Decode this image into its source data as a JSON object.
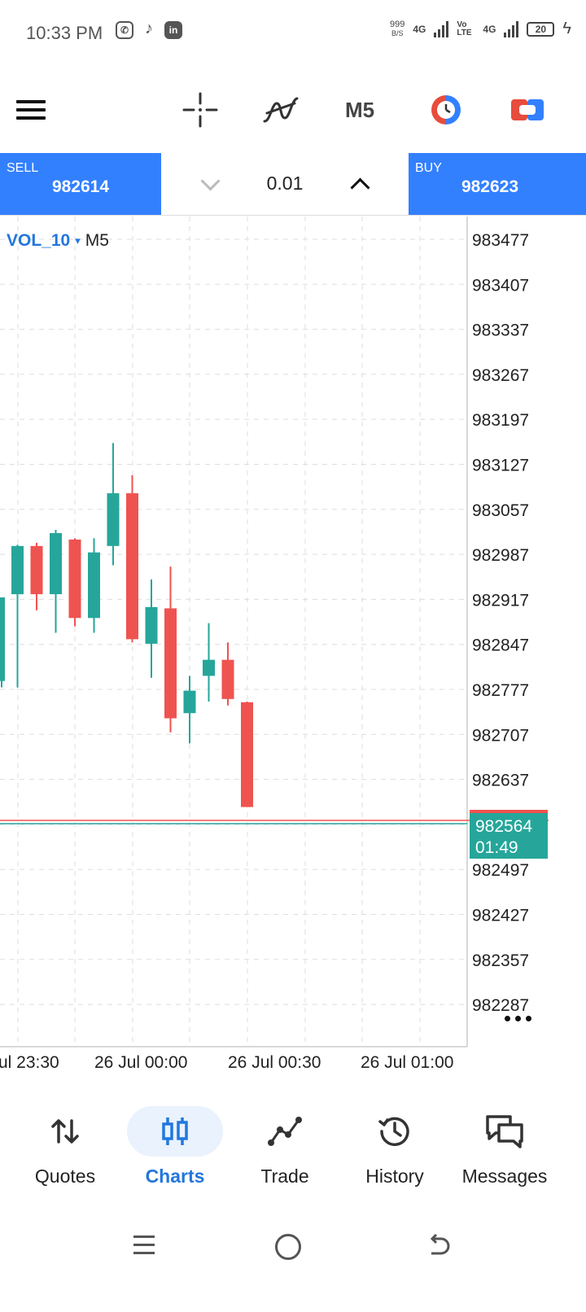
{
  "status_bar": {
    "time": "10:33 PM",
    "data_speed": "999",
    "data_speed_unit": "B/S",
    "network1": "4G",
    "volte": "Vo LTE",
    "network2": "4G",
    "battery": "20"
  },
  "toolbar": {
    "timeframe": "M5"
  },
  "trade": {
    "sell_label": "SELL",
    "sell_price": "982614",
    "lot_size": "0.01",
    "buy_label": "BUY",
    "buy_price": "982623"
  },
  "chart_header": {
    "symbol": "VOL_10",
    "caret": "▾",
    "timeframe": "M5"
  },
  "chart_data": {
    "type": "candlestick",
    "price_axis": [
      "983477",
      "983407",
      "983337",
      "983267",
      "983197",
      "983127",
      "983057",
      "982987",
      "982917",
      "982847",
      "982777",
      "982707",
      "982637",
      "982497",
      "982427",
      "982357",
      "982287"
    ],
    "time_axis": [
      "ul 23:30",
      "26 Jul 00:00",
      "26 Jul 00:30",
      "26 Jul 01:00"
    ],
    "current_price": "982564",
    "countdown": "01:49",
    "candles": [
      {
        "open": 982790,
        "high": 982920,
        "low": 982780,
        "close": 982920
      },
      {
        "open": 982925,
        "high": 983002,
        "low": 982780,
        "close": 983000
      },
      {
        "open": 983000,
        "high": 983005,
        "low": 982900,
        "close": 982925
      },
      {
        "open": 982925,
        "high": 983025,
        "low": 982865,
        "close": 983020
      },
      {
        "open": 983010,
        "high": 983012,
        "low": 982875,
        "close": 982888
      },
      {
        "open": 982888,
        "high": 983012,
        "low": 982865,
        "close": 982990
      },
      {
        "open": 983000,
        "high": 983160,
        "low": 982970,
        "close": 983082
      },
      {
        "open": 983082,
        "high": 983110,
        "low": 982850,
        "close": 982855
      },
      {
        "open": 982848,
        "high": 982948,
        "low": 982795,
        "close": 982905
      },
      {
        "open": 982903,
        "high": 982968,
        "low": 982710,
        "close": 982732
      },
      {
        "open": 982740,
        "high": 982798,
        "low": 982693,
        "close": 982775
      },
      {
        "open": 982798,
        "high": 982880,
        "low": 982758,
        "close": 982823
      },
      {
        "open": 982823,
        "high": 982850,
        "low": 982752,
        "close": 982762
      },
      {
        "open": 982757,
        "high": 982758,
        "low": 982594,
        "close": 982594
      }
    ],
    "colors": {
      "up": "#26a69a",
      "down": "#ef5350",
      "grid": "#dddddd"
    }
  },
  "bottom_nav": {
    "items": [
      {
        "label": "Quotes"
      },
      {
        "label": "Charts"
      },
      {
        "label": "Trade"
      },
      {
        "label": "History"
      },
      {
        "label": "Messages"
      }
    ]
  },
  "colors": {
    "accent": "#3380ff",
    "active": "#2277dd"
  }
}
